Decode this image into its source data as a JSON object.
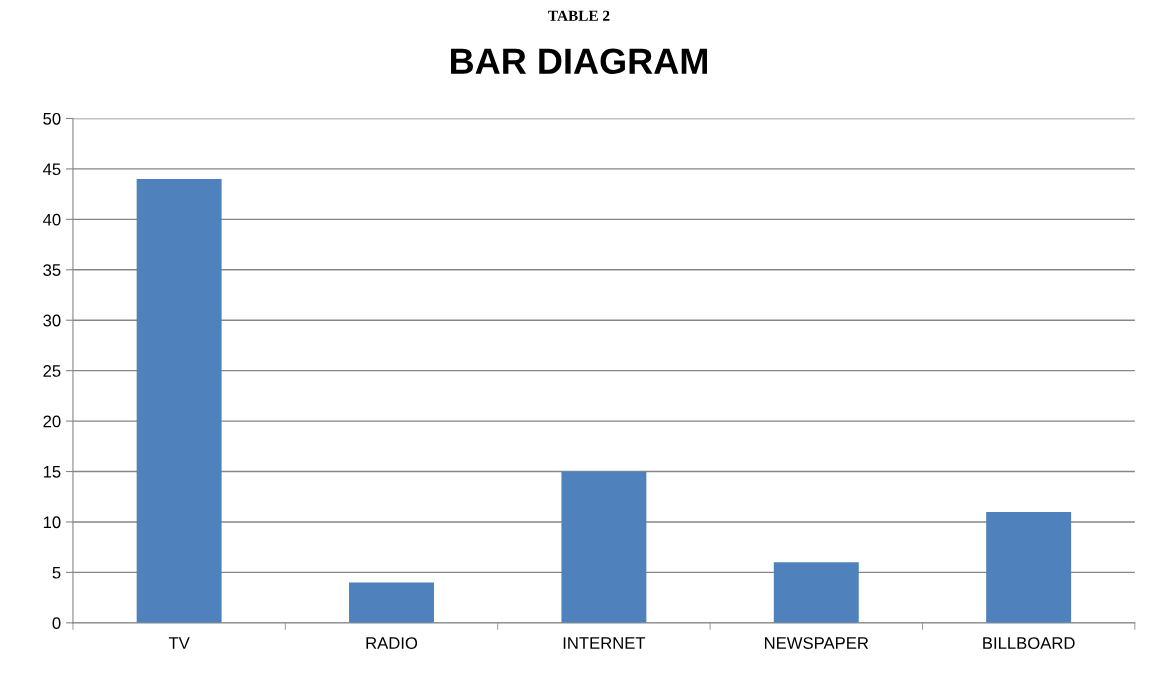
{
  "chart_data": {
    "type": "bar",
    "title": "BAR DIAGRAM",
    "annotations": [
      "TABLE 2"
    ],
    "categories": [
      "TV",
      "RADIO",
      "INTERNET",
      "NEWSPAPER",
      "BILLBOARD"
    ],
    "values": [
      44,
      4,
      15,
      6,
      11
    ],
    "color": "#4f81bd",
    "ylim": [
      0,
      50
    ],
    "yticks": [
      0,
      5,
      10,
      15,
      20,
      25,
      30,
      35,
      40,
      45,
      50
    ],
    "grid": "y"
  }
}
